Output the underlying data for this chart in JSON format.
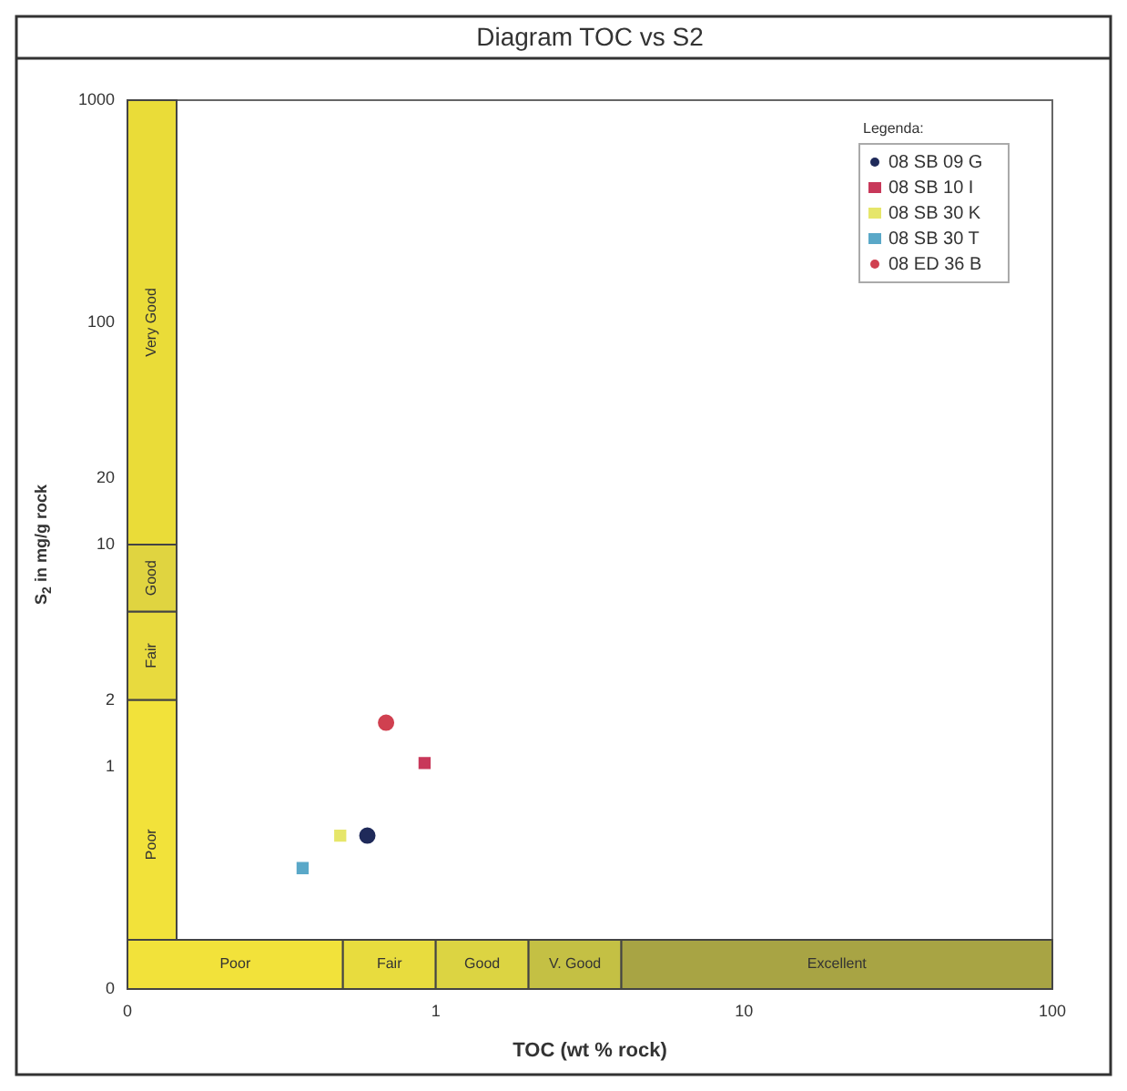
{
  "chart_data": {
    "type": "scatter",
    "title": "Diagram TOC vs S2",
    "xlabel": "TOC (wt % rock)",
    "ylabel": "S$_{2}$ in mg/g rock",
    "legend_title": "Legenda:",
    "legend": "top right",
    "log": "xy",
    "grid": false,
    "xlim": [
      0.1,
      100
    ],
    "xticks": [
      {
        "value": 0.1,
        "label": "0"
      },
      1,
      10,
      100
    ],
    "ylim": [
      0.1,
      1000
    ],
    "yticks": [
      {
        "value": 0.1,
        "label": "0"
      },
      1,
      2,
      10,
      20,
      100,
      1000
    ],
    "series": [
      {
        "name": "08 SB 09 G",
        "color": "#1f2a5a",
        "marker": "circle",
        "x": [
          0.6
        ],
        "values": [
          0.49
        ]
      },
      {
        "name": "08 SB 10 I",
        "color": "#c8385a",
        "marker": "square",
        "x": [
          0.92
        ],
        "values": [
          1.04
        ]
      },
      {
        "name": "08 SB 30 K",
        "color": "#e6e66a",
        "marker": "square",
        "x": [
          0.49
        ],
        "values": [
          0.49
        ]
      },
      {
        "name": "08 SB 30 T",
        "color": "#5aa8c8",
        "marker": "square",
        "x": [
          0.37
        ],
        "values": [
          0.35
        ]
      },
      {
        "name": "08 ED 36 B",
        "color": "#d04050",
        "marker": "circle",
        "x": [
          0.69
        ],
        "values": [
          1.58
        ]
      }
    ],
    "bands": [
      {
        "axis": "y",
        "from": 0.1,
        "to": 2,
        "label": "Poor",
        "color": "#f2e23a"
      },
      {
        "axis": "y",
        "from": 2,
        "to": 5,
        "label": "Fair",
        "color": "#e8da3e"
      },
      {
        "axis": "y",
        "from": 5,
        "to": 10,
        "label": "Good",
        "color": "#e0d440"
      },
      {
        "axis": "y",
        "from": 10,
        "to": 1000,
        "label": "Very Good",
        "color": "#eadc38"
      },
      {
        "axis": "x",
        "from": 0.1,
        "to": 0.5,
        "label": "Poor",
        "color": "#f2e23a"
      },
      {
        "axis": "x",
        "from": 0.5,
        "to": 1,
        "label": "Fair",
        "color": "#e8dc3e"
      },
      {
        "axis": "x",
        "from": 1,
        "to": 2,
        "label": "Good",
        "color": "#dcd442"
      },
      {
        "axis": "x",
        "from": 2,
        "to": 4,
        "label": "V. Good",
        "color": "#c4c044"
      },
      {
        "axis": "x",
        "from": 4,
        "to": 100,
        "label": "Excellent",
        "color": "#a8a444"
      }
    ]
  }
}
